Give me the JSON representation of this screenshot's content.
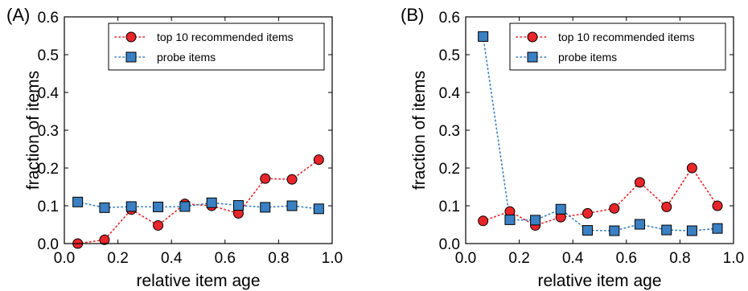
{
  "chart_data": [
    {
      "type": "line",
      "panel_label": "(A)",
      "xlabel": "relative item age",
      "ylabel": "fraction of items",
      "xlim": [
        0.0,
        1.0
      ],
      "ylim": [
        0.0,
        0.6
      ],
      "xticks": [
        "0.0",
        "0.2",
        "0.4",
        "0.6",
        "0.8",
        "1.0"
      ],
      "yticks": [
        "0.0",
        "0.1",
        "0.2",
        "0.3",
        "0.4",
        "0.5",
        "0.6"
      ],
      "legend_position": "top-right",
      "series": [
        {
          "name": "top 10 recommended items",
          "marker": "circle",
          "line_style": "dotted",
          "color": "#e8262a",
          "x": [
            0.05,
            0.15,
            0.25,
            0.35,
            0.45,
            0.55,
            0.65,
            0.75,
            0.85,
            0.95
          ],
          "y": [
            0.0,
            0.01,
            0.09,
            0.048,
            0.105,
            0.1,
            0.08,
            0.172,
            0.17,
            0.222
          ]
        },
        {
          "name": "probe items",
          "marker": "square",
          "line_style": "dotted",
          "color": "#3a80c3",
          "x": [
            0.05,
            0.15,
            0.25,
            0.35,
            0.45,
            0.55,
            0.65,
            0.75,
            0.85,
            0.95
          ],
          "y": [
            0.11,
            0.095,
            0.098,
            0.097,
            0.098,
            0.108,
            0.101,
            0.096,
            0.1,
            0.092
          ]
        }
      ]
    },
    {
      "type": "line",
      "panel_label": "(B)",
      "xlabel": "relative item age",
      "ylabel": "fraction of items",
      "xlim": [
        0.0,
        1.0
      ],
      "ylim": [
        0.0,
        0.6
      ],
      "xticks": [
        "0.0",
        "0.2",
        "0.4",
        "0.6",
        "0.8",
        "1.0"
      ],
      "yticks": [
        "0.0",
        "0.1",
        "0.2",
        "0.3",
        "0.4",
        "0.5",
        "0.6"
      ],
      "legend_position": "top-right",
      "series": [
        {
          "name": "top 10 recommended items",
          "marker": "circle",
          "line_style": "dotted",
          "color": "#e8262a",
          "x": [
            0.065,
            0.165,
            0.26,
            0.355,
            0.455,
            0.555,
            0.65,
            0.75,
            0.845,
            0.94
          ],
          "y": [
            0.06,
            0.085,
            0.048,
            0.07,
            0.08,
            0.093,
            0.162,
            0.097,
            0.2,
            0.1
          ]
        },
        {
          "name": "probe items",
          "marker": "square",
          "line_style": "dotted",
          "color": "#3a80c3",
          "x": [
            0.065,
            0.165,
            0.26,
            0.355,
            0.455,
            0.555,
            0.65,
            0.75,
            0.845,
            0.94
          ],
          "y": [
            0.548,
            0.063,
            0.062,
            0.091,
            0.035,
            0.034,
            0.051,
            0.036,
            0.034,
            0.04
          ]
        }
      ]
    }
  ]
}
